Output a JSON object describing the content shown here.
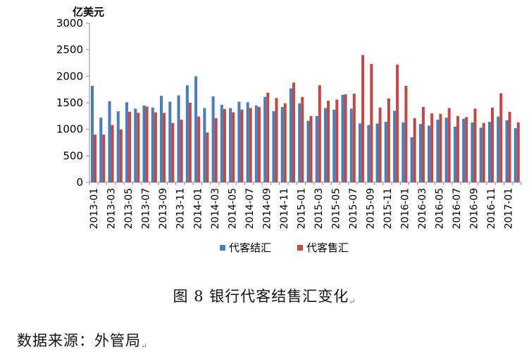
{
  "chart_data": {
    "type": "bar",
    "unit_label": "亿美元",
    "ylim": [
      0,
      3000
    ],
    "yticks": [
      0,
      500,
      1000,
      1500,
      2000,
      2500,
      3000
    ],
    "grid": false,
    "legend_position": "bottom",
    "categories": [
      "2013-01",
      "2013-02",
      "2013-03",
      "2013-04",
      "2013-05",
      "2013-06",
      "2013-07",
      "2013-08",
      "2013-09",
      "2013-10",
      "2013-11",
      "2013-12",
      "2014-01",
      "2014-02",
      "2014-03",
      "2014-04",
      "2014-05",
      "2014-06",
      "2014-07",
      "2014-08",
      "2014-09",
      "2014-10",
      "2014-11",
      "2014-12",
      "2015-01",
      "2015-02",
      "2015-03",
      "2015-04",
      "2015-05",
      "2015-06",
      "2015-07",
      "2015-08",
      "2015-09",
      "2015-10",
      "2015-11",
      "2015-12",
      "2016-01",
      "2016-02",
      "2016-03",
      "2016-04",
      "2016-05",
      "2016-06",
      "2016-07",
      "2016-08",
      "2016-09",
      "2016-10",
      "2016-11",
      "2016-12",
      "2017-01",
      "2017-02"
    ],
    "tick_labels": [
      "2013-01",
      "2013-03",
      "2013-05",
      "2013-07",
      "2013-09",
      "2013-11",
      "2014-01",
      "2014-03",
      "2014-05",
      "2014-07",
      "2014-09",
      "2014-11",
      "2015-01",
      "2015-03",
      "2015-05",
      "2015-07",
      "2015-09",
      "2015-11",
      "2016-01",
      "2016-03",
      "2016-05",
      "2016-07",
      "2016-09",
      "2016-11",
      "2017-01"
    ],
    "series": [
      {
        "name": "代客结汇",
        "color": "#4a7ebb",
        "values": [
          1820,
          1220,
          1530,
          1340,
          1510,
          1390,
          1450,
          1410,
          1630,
          1520,
          1640,
          1830,
          2000,
          1400,
          1620,
          1460,
          1400,
          1520,
          1510,
          1450,
          1610,
          1340,
          1420,
          1770,
          1490,
          1160,
          1250,
          1400,
          1370,
          1650,
          1390,
          1110,
          1080,
          1110,
          1140,
          1350,
          1130,
          850,
          1100,
          1070,
          1180,
          1220,
          1050,
          1200,
          1130,
          1030,
          1140,
          1240,
          1170,
          1020
        ]
      },
      {
        "name": "代客售汇",
        "color": "#be4b48",
        "values": [
          900,
          900,
          1080,
          1000,
          1330,
          1310,
          1430,
          1320,
          1310,
          1120,
          1180,
          1500,
          1240,
          940,
          1210,
          1380,
          1320,
          1370,
          1400,
          1420,
          1690,
          1590,
          1490,
          1880,
          1610,
          1250,
          1830,
          1540,
          1560,
          1660,
          1670,
          2400,
          2230,
          1410,
          1580,
          2220,
          1820,
          1210,
          1420,
          1300,
          1290,
          1400,
          1250,
          1230,
          1390,
          1120,
          1410,
          1680,
          1330,
          1130
        ]
      }
    ]
  },
  "caption": "图 8    银行代客结售汇变化",
  "source_line": "数据来源：外管局",
  "return_mark": "↵"
}
